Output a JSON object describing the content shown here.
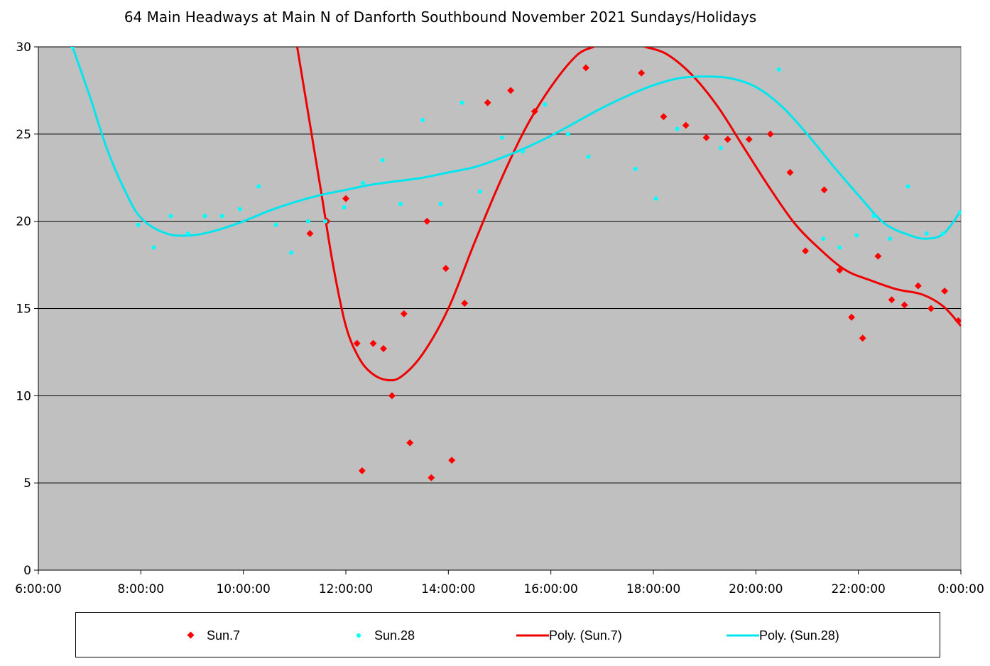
{
  "chart_data": {
    "type": "scatter",
    "title": "64 Main Headways at Main N of Danforth Southbound November 2021  Sundays/Holidays",
    "xlabel": "",
    "ylabel": "",
    "xlim": [
      "6:00:00",
      "0:00:00"
    ],
    "ylim": [
      0,
      30
    ],
    "grid": "horizontal",
    "legend_position": "bottom",
    "x_ticks": [
      "6:00:00",
      "8:00:00",
      "10:00:00",
      "12:00:00",
      "14:00:00",
      "16:00:00",
      "18:00:00",
      "20:00:00",
      "22:00:00",
      "0:00:00"
    ],
    "y_ticks": [
      "0",
      "5",
      "10",
      "15",
      "20",
      "25",
      "30"
    ],
    "colors": {
      "plot_bg": "#c0c0c0",
      "sun7": "#ff0000",
      "sun28": "#00ffff",
      "poly7": "#ee0000",
      "poly28": "#00e5ee"
    },
    "series": [
      {
        "name": "Sun.7",
        "marker": "diamond",
        "points": [
          {
            "x": "11:18:00",
            "y": 19.3
          },
          {
            "x": "11:38:00",
            "y": 20.0
          },
          {
            "x": "12:00:00",
            "y": 21.3
          },
          {
            "x": "12:13:00",
            "y": 13.0
          },
          {
            "x": "12:19:00",
            "y": 5.7
          },
          {
            "x": "12:32:00",
            "y": 13.0
          },
          {
            "x": "12:44:00",
            "y": 12.7
          },
          {
            "x": "12:54:00",
            "y": 10.0
          },
          {
            "x": "13:08:00",
            "y": 14.7
          },
          {
            "x": "13:15:00",
            "y": 7.3
          },
          {
            "x": "13:35:00",
            "y": 20.0
          },
          {
            "x": "13:40:00",
            "y": 5.3
          },
          {
            "x": "13:57:00",
            "y": 17.3
          },
          {
            "x": "14:04:00",
            "y": 6.3
          },
          {
            "x": "14:19:00",
            "y": 15.3
          },
          {
            "x": "14:46:00",
            "y": 26.8
          },
          {
            "x": "15:13:00",
            "y": 27.5
          },
          {
            "x": "15:41:00",
            "y": 26.3
          },
          {
            "x": "16:41:00",
            "y": 28.8
          },
          {
            "x": "17:46:00",
            "y": 28.5
          },
          {
            "x": "18:12:00",
            "y": 26.0
          },
          {
            "x": "18:38:00",
            "y": 25.5
          },
          {
            "x": "19:02:00",
            "y": 24.8
          },
          {
            "x": "19:27:00",
            "y": 24.7
          },
          {
            "x": "19:52:00",
            "y": 24.7
          },
          {
            "x": "20:17:00",
            "y": 25.0
          },
          {
            "x": "20:40:00",
            "y": 22.8
          },
          {
            "x": "20:58:00",
            "y": 18.3
          },
          {
            "x": "21:20:00",
            "y": 21.8
          },
          {
            "x": "21:38:00",
            "y": 17.2
          },
          {
            "x": "21:52:00",
            "y": 14.5
          },
          {
            "x": "22:05:00",
            "y": 13.3
          },
          {
            "x": "22:23:00",
            "y": 18.0
          },
          {
            "x": "22:39:00",
            "y": 15.5
          },
          {
            "x": "22:54:00",
            "y": 15.2
          },
          {
            "x": "23:10:00",
            "y": 16.3
          },
          {
            "x": "23:25:00",
            "y": 15.0
          },
          {
            "x": "23:41:00",
            "y": 16.0
          },
          {
            "x": "23:57:00",
            "y": 14.3
          }
        ]
      },
      {
        "name": "Sun.28",
        "marker": "circle",
        "points": [
          {
            "x": "6:40:00",
            "y": 30.0
          },
          {
            "x": "7:57:00",
            "y": 19.8
          },
          {
            "x": "8:15:00",
            "y": 18.5
          },
          {
            "x": "8:35:00",
            "y": 20.3
          },
          {
            "x": "8:55:00",
            "y": 19.3
          },
          {
            "x": "9:15:00",
            "y": 20.3
          },
          {
            "x": "9:35:00",
            "y": 20.3
          },
          {
            "x": "9:56:00",
            "y": 20.7
          },
          {
            "x": "10:18:00",
            "y": 22.0
          },
          {
            "x": "10:38:00",
            "y": 19.8
          },
          {
            "x": "10:56:00",
            "y": 18.2
          },
          {
            "x": "11:16:00",
            "y": 20.0
          },
          {
            "x": "11:36:00",
            "y": 20.0
          },
          {
            "x": "11:58:00",
            "y": 20.8
          },
          {
            "x": "12:20:00",
            "y": 22.2
          },
          {
            "x": "12:43:00",
            "y": 23.5
          },
          {
            "x": "13:04:00",
            "y": 21.0
          },
          {
            "x": "13:30:00",
            "y": 25.8
          },
          {
            "x": "13:51:00",
            "y": 21.0
          },
          {
            "x": "14:16:00",
            "y": 26.8
          },
          {
            "x": "14:37:00",
            "y": 21.7
          },
          {
            "x": "15:03:00",
            "y": 24.8
          },
          {
            "x": "15:27:00",
            "y": 24.0
          },
          {
            "x": "15:53:00",
            "y": 26.7
          },
          {
            "x": "16:20:00",
            "y": 25.0
          },
          {
            "x": "16:44:00",
            "y": 23.7
          },
          {
            "x": "17:39:00",
            "y": 23.0
          },
          {
            "x": "18:03:00",
            "y": 21.3
          },
          {
            "x": "18:28:00",
            "y": 25.3
          },
          {
            "x": "19:19:00",
            "y": 24.2
          },
          {
            "x": "20:27:00",
            "y": 28.7
          },
          {
            "x": "21:19:00",
            "y": 19.0
          },
          {
            "x": "21:38:00",
            "y": 18.5
          },
          {
            "x": "21:58:00",
            "y": 19.2
          },
          {
            "x": "22:18:00",
            "y": 20.3
          },
          {
            "x": "22:37:00",
            "y": 19.0
          },
          {
            "x": "22:58:00",
            "y": 22.0
          },
          {
            "x": "23:20:00",
            "y": 19.3
          },
          {
            "x": "23:39:00",
            "y": 19.3
          },
          {
            "x": "23:59:00",
            "y": 20.5
          }
        ]
      },
      {
        "name": "Poly. (Sun.7)",
        "type": "line",
        "points": [
          {
            "x": "11:03:00",
            "y": 30.0
          },
          {
            "x": "11:30:00",
            "y": 22.0
          },
          {
            "x": "11:45:00",
            "y": 17.5
          },
          {
            "x": "12:00:00",
            "y": 14.0
          },
          {
            "x": "12:15:00",
            "y": 12.2
          },
          {
            "x": "12:30:00",
            "y": 11.3
          },
          {
            "x": "12:48:00",
            "y": 10.9
          },
          {
            "x": "13:05:00",
            "y": 11.1
          },
          {
            "x": "13:30:00",
            "y": 12.4
          },
          {
            "x": "14:00:00",
            "y": 15.0
          },
          {
            "x": "14:30:00",
            "y": 18.7
          },
          {
            "x": "15:00:00",
            "y": 22.2
          },
          {
            "x": "15:30:00",
            "y": 25.3
          },
          {
            "x": "16:00:00",
            "y": 27.7
          },
          {
            "x": "16:30:00",
            "y": 29.5
          },
          {
            "x": "16:50:00",
            "y": 30.0
          }
        ]
      },
      {
        "name": "Poly. (Sun.7)",
        "type": "line",
        "points": [
          {
            "x": "17:50:00",
            "y": 30.0
          },
          {
            "x": "18:15:00",
            "y": 29.6
          },
          {
            "x": "18:45:00",
            "y": 28.4
          },
          {
            "x": "19:15:00",
            "y": 26.6
          },
          {
            "x": "19:45:00",
            "y": 24.3
          },
          {
            "x": "20:15:00",
            "y": 22.0
          },
          {
            "x": "20:45:00",
            "y": 19.9
          },
          {
            "x": "21:15:00",
            "y": 18.4
          },
          {
            "x": "21:45:00",
            "y": 17.2
          },
          {
            "x": "22:15:00",
            "y": 16.6
          },
          {
            "x": "22:45:00",
            "y": 16.1
          },
          {
            "x": "23:15:00",
            "y": 15.8
          },
          {
            "x": "23:40:00",
            "y": 15.1
          },
          {
            "x": "24:00:00",
            "y": 14.0
          }
        ]
      },
      {
        "name": "Poly. (Sun.28)",
        "type": "line",
        "points": [
          {
            "x": "6:40:00",
            "y": 30.0
          },
          {
            "x": "7:00:00",
            "y": 27.2
          },
          {
            "x": "7:20:00",
            "y": 24.2
          },
          {
            "x": "7:40:00",
            "y": 21.9
          },
          {
            "x": "8:00:00",
            "y": 20.2
          },
          {
            "x": "8:30:00",
            "y": 19.3
          },
          {
            "x": "9:00:00",
            "y": 19.2
          },
          {
            "x": "9:30:00",
            "y": 19.5
          },
          {
            "x": "10:00:00",
            "y": 20.0
          },
          {
            "x": "10:30:00",
            "y": 20.6
          },
          {
            "x": "11:00:00",
            "y": 21.1
          },
          {
            "x": "11:30:00",
            "y": 21.5
          },
          {
            "x": "12:00:00",
            "y": 21.8
          },
          {
            "x": "12:30:00",
            "y": 22.1
          },
          {
            "x": "13:00:00",
            "y": 22.3
          },
          {
            "x": "13:30:00",
            "y": 22.5
          },
          {
            "x": "14:00:00",
            "y": 22.8
          },
          {
            "x": "14:30:00",
            "y": 23.1
          },
          {
            "x": "15:00:00",
            "y": 23.6
          },
          {
            "x": "15:30:00",
            "y": 24.2
          },
          {
            "x": "16:00:00",
            "y": 24.9
          },
          {
            "x": "16:30:00",
            "y": 25.7
          },
          {
            "x": "17:00:00",
            "y": 26.5
          },
          {
            "x": "17:30:00",
            "y": 27.2
          },
          {
            "x": "18:00:00",
            "y": 27.8
          },
          {
            "x": "18:30:00",
            "y": 28.2
          },
          {
            "x": "19:00:00",
            "y": 28.3
          },
          {
            "x": "19:30:00",
            "y": 28.2
          },
          {
            "x": "20:00:00",
            "y": 27.7
          },
          {
            "x": "20:30:00",
            "y": 26.6
          },
          {
            "x": "21:00:00",
            "y": 25.0
          },
          {
            "x": "21:30:00",
            "y": 23.2
          },
          {
            "x": "22:00:00",
            "y": 21.5
          },
          {
            "x": "22:30:00",
            "y": 19.9
          },
          {
            "x": "23:00:00",
            "y": 19.2
          },
          {
            "x": "23:20:00",
            "y": 19.0
          },
          {
            "x": "23:40:00",
            "y": 19.3
          },
          {
            "x": "24:00:00",
            "y": 20.6
          }
        ]
      }
    ]
  },
  "legend": [
    {
      "label": "Sun.7",
      "symbol": "diamond",
      "color": "#ff0000"
    },
    {
      "label": "Sun.28",
      "symbol": "circle",
      "color": "#00ffff"
    },
    {
      "label": "Poly. (Sun.7)",
      "symbol": "line",
      "color": "#ee0000"
    },
    {
      "label": "Poly. (Sun.28)",
      "symbol": "line",
      "color": "#00e5ee"
    }
  ]
}
